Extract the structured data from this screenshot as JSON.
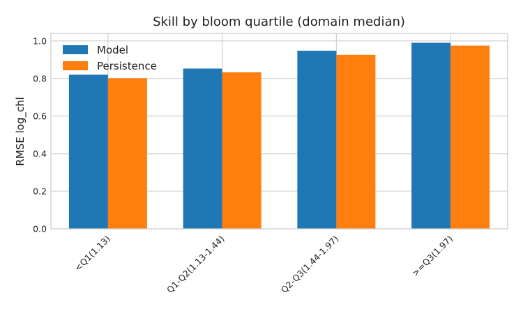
{
  "chart_data": {
    "type": "bar",
    "title": "Skill by bloom quartile (domain median)",
    "xlabel": "",
    "ylabel": "RMSE log_chl",
    "categories": [
      "<Q1(1.13)",
      "Q1-Q2(1.13-1.44)",
      "Q2-Q3(1.44-1.97)",
      ">=Q3(1.97)"
    ],
    "series": [
      {
        "name": "Model",
        "values": [
          0.82,
          0.853,
          0.948,
          0.99
        ],
        "color": "#1f77b4"
      },
      {
        "name": "Persistence",
        "values": [
          0.802,
          0.833,
          0.926,
          0.975
        ],
        "color": "#ff7f0e"
      }
    ],
    "ylim": [
      0,
      1.04
    ],
    "yticks": [
      0.0,
      0.2,
      0.4,
      0.6,
      0.8,
      1.0
    ],
    "ytick_labels": [
      "0.0",
      "0.2",
      "0.4",
      "0.6",
      "0.8",
      "1.0"
    ],
    "grid": true,
    "legend_position": "top-left",
    "background": "#ffffff",
    "grid_color": "#cccccc"
  }
}
